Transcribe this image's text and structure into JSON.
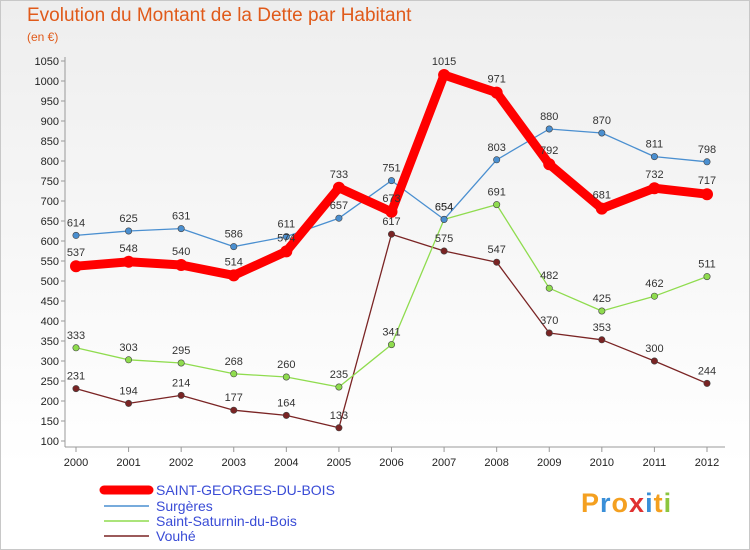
{
  "chart_data": {
    "type": "line",
    "title": "Evolution du Montant de la Dette par Habitant",
    "subtitle": "(en €)",
    "x": [
      "2000",
      "2001",
      "2002",
      "2003",
      "2004",
      "2005",
      "2006",
      "2007",
      "2008",
      "2009",
      "2010",
      "2011",
      "2012"
    ],
    "yticks": [
      100,
      150,
      200,
      250,
      300,
      350,
      400,
      450,
      500,
      550,
      600,
      650,
      700,
      750,
      800,
      850,
      900,
      950,
      1000,
      1050
    ],
    "ylim": [
      100,
      1050
    ],
    "grid": false,
    "legend_position": "bottom-left",
    "series": [
      {
        "name": "SAINT-GEORGES-DU-BOIS",
        "color": "#ff0000",
        "values": [
          537,
          548,
          540,
          514,
          574,
          733,
          673,
          1015,
          971,
          792,
          681,
          732,
          717
        ]
      },
      {
        "name": "Surgères",
        "color": "#4a8fd0",
        "values": [
          614,
          625,
          631,
          586,
          611,
          657,
          751,
          654,
          803,
          880,
          870,
          811,
          798
        ]
      },
      {
        "name": "Saint-Saturnin-du-Bois",
        "color": "#8fdc4e",
        "values": [
          333,
          303,
          295,
          268,
          260,
          235,
          341,
          654,
          691,
          482,
          425,
          462,
          511
        ]
      },
      {
        "name": "Vouhé",
        "color": "#7a2424",
        "values": [
          231,
          194,
          214,
          177,
          164,
          133,
          617,
          575,
          547,
          370,
          353,
          300,
          244
        ]
      }
    ]
  },
  "logo": {
    "letters": [
      "P",
      "r",
      "o",
      "x",
      "i",
      "t",
      "i"
    ],
    "colors": [
      "#f4a020",
      "#3a8fd8",
      "#f4a020",
      "#e03030",
      "#3a8fd8",
      "#f4a020",
      "#8cc63f"
    ]
  }
}
